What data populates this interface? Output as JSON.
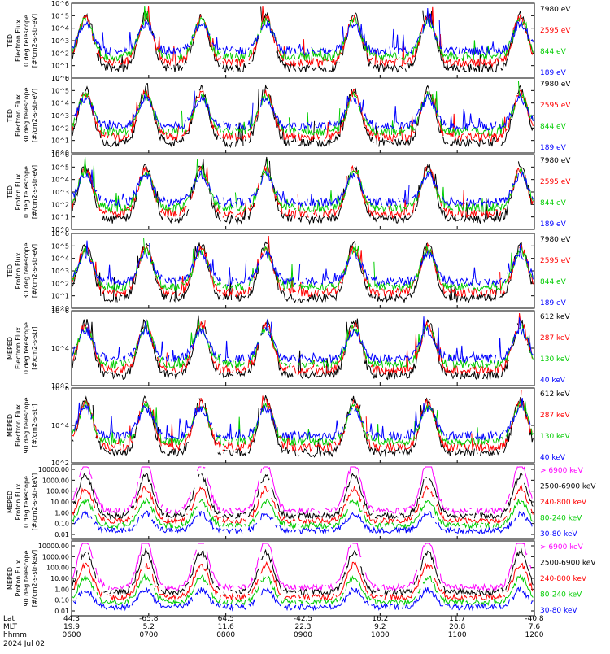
{
  "chart_data": [
    {
      "type": "line",
      "ylabel": [
        "TED",
        "Electron Flux",
        "0 deg telescope",
        "[#/cm2-s-str-eV]"
      ],
      "scale": "log",
      "yticks": [
        "10^0",
        "10^1",
        "10^2",
        "10^3",
        "10^4",
        "10^5",
        "10^6"
      ],
      "ylim": [
        1,
        1000000
      ],
      "series": [
        {
          "name": "7980 eV",
          "color": "#000000"
        },
        {
          "name": "2595 eV",
          "color": "#ff0000"
        },
        {
          "name": "844 eV",
          "color": "#00cc00"
        },
        {
          "name": "189 eV",
          "color": "#0000ff"
        }
      ]
    },
    {
      "type": "line",
      "ylabel": [
        "TED",
        "Electron Flux",
        "30 deg telescope",
        "[#/cm2-s-str-eV]"
      ],
      "scale": "log",
      "yticks": [
        "10^0",
        "10^1",
        "10^2",
        "10^3",
        "10^4",
        "10^5",
        "10^6"
      ],
      "ylim": [
        1,
        1000000
      ],
      "series": [
        {
          "name": "7980 eV",
          "color": "#000000"
        },
        {
          "name": "2595 eV",
          "color": "#ff0000"
        },
        {
          "name": "844 eV",
          "color": "#00cc00"
        },
        {
          "name": "189 eV",
          "color": "#0000ff"
        }
      ]
    },
    {
      "type": "line",
      "ylabel": [
        "TED",
        "Proton Flux",
        "0 deg telescope",
        "[#/cm2-s-str-eV]"
      ],
      "scale": "log",
      "yticks": [
        "10^0",
        "10^1",
        "10^2",
        "10^3",
        "10^4",
        "10^5",
        "10^6"
      ],
      "ylim": [
        1,
        1000000
      ],
      "series": [
        {
          "name": "7980 eV",
          "color": "#000000"
        },
        {
          "name": "2595 eV",
          "color": "#ff0000"
        },
        {
          "name": "844 eV",
          "color": "#00cc00"
        },
        {
          "name": "189 eV",
          "color": "#0000ff"
        }
      ]
    },
    {
      "type": "line",
      "ylabel": [
        "TED",
        "Proton Flux",
        "30 deg telescope",
        "[#/cm2-s-str-eV]"
      ],
      "scale": "log",
      "yticks": [
        "10^0",
        "10^1",
        "10^2",
        "10^3",
        "10^4",
        "10^5",
        "10^6"
      ],
      "ylim": [
        1,
        1000000
      ],
      "series": [
        {
          "name": "7980 eV",
          "color": "#000000"
        },
        {
          "name": "2595 eV",
          "color": "#ff0000"
        },
        {
          "name": "844 eV",
          "color": "#00cc00"
        },
        {
          "name": "189 eV",
          "color": "#0000ff"
        }
      ]
    },
    {
      "type": "line",
      "ylabel": [
        "MEPED",
        "Electron Flux",
        "0 deg telescope",
        "[#/cm2-s-str]"
      ],
      "scale": "log",
      "yticks": [
        "10^2",
        "10^4",
        "10^6"
      ],
      "ylim": [
        100,
        1000000
      ],
      "series": [
        {
          "name": "612 keV",
          "color": "#000000"
        },
        {
          "name": "287 keV",
          "color": "#ff0000"
        },
        {
          "name": "130 keV",
          "color": "#00cc00"
        },
        {
          "name": "40 keV",
          "color": "#0000ff"
        }
      ]
    },
    {
      "type": "line",
      "ylabel": [
        "MEPED",
        "Electron Flux",
        "90 deg telescope",
        "[#/cm2-s-str]"
      ],
      "scale": "log",
      "yticks": [
        "10^2",
        "10^4",
        "10^6"
      ],
      "ylim": [
        100,
        1000000
      ],
      "series": [
        {
          "name": "612 keV",
          "color": "#000000"
        },
        {
          "name": "287 keV",
          "color": "#ff0000"
        },
        {
          "name": "130 keV",
          "color": "#00cc00"
        },
        {
          "name": "40 keV",
          "color": "#0000ff"
        }
      ]
    },
    {
      "type": "line",
      "ylabel": [
        "MEPED",
        "Proton Flux",
        "0 deg telescope",
        "[#/cm2-s-str-keV]"
      ],
      "scale": "log",
      "yticks": [
        "10000.00",
        "1000.00",
        "100.00",
        "10.00",
        "1.00",
        "0.10",
        "0.01"
      ],
      "ylim": [
        0.01,
        10000
      ],
      "series": [
        {
          "name": "> 6900 keV",
          "color": "#ff00ff"
        },
        {
          "name": "2500-6900 keV",
          "color": "#000000"
        },
        {
          "name": "240-800 keV",
          "color": "#ff0000"
        },
        {
          "name": "80-240 keV",
          "color": "#00cc00"
        },
        {
          "name": "30-80 keV",
          "color": "#0000ff"
        }
      ]
    },
    {
      "type": "line",
      "ylabel": [
        "MEPED",
        "Proton Flux",
        "90 deg telescope",
        "[#/cm2-s-str-keV]"
      ],
      "scale": "log",
      "yticks": [
        "10000.00",
        "1000.00",
        "100.00",
        "10.00",
        "1.00",
        "0.10",
        "0.01"
      ],
      "ylim": [
        0.01,
        10000
      ],
      "series": [
        {
          "name": "> 6900 keV",
          "color": "#ff00ff"
        },
        {
          "name": "2500-6900 keV",
          "color": "#000000"
        },
        {
          "name": "240-800 keV",
          "color": "#ff0000"
        },
        {
          "name": "80-240 keV",
          "color": "#00cc00"
        },
        {
          "name": "30-80 keV",
          "color": "#0000ff"
        }
      ]
    }
  ],
  "xaxis": {
    "row_labels": [
      "Lat",
      "MLT",
      "hhmm"
    ],
    "date": "2024 Jul 02",
    "ticks": [
      {
        "lat": "44.3",
        "mlt": "19.9",
        "hhmm": "0600"
      },
      {
        "lat": "-65.8",
        "mlt": "5.2",
        "hhmm": "0700"
      },
      {
        "lat": "64.5",
        "mlt": "11.6",
        "hhmm": "0800"
      },
      {
        "lat": "-42.5",
        "mlt": "22.3",
        "hhmm": "0900"
      },
      {
        "lat": "16.2",
        "mlt": "9.2",
        "hhmm": "1000"
      },
      {
        "lat": "11.7",
        "mlt": "20.8",
        "hhmm": "1100"
      },
      {
        "lat": "-40.8",
        "mlt": "7.6",
        "hhmm": "1200"
      }
    ]
  }
}
